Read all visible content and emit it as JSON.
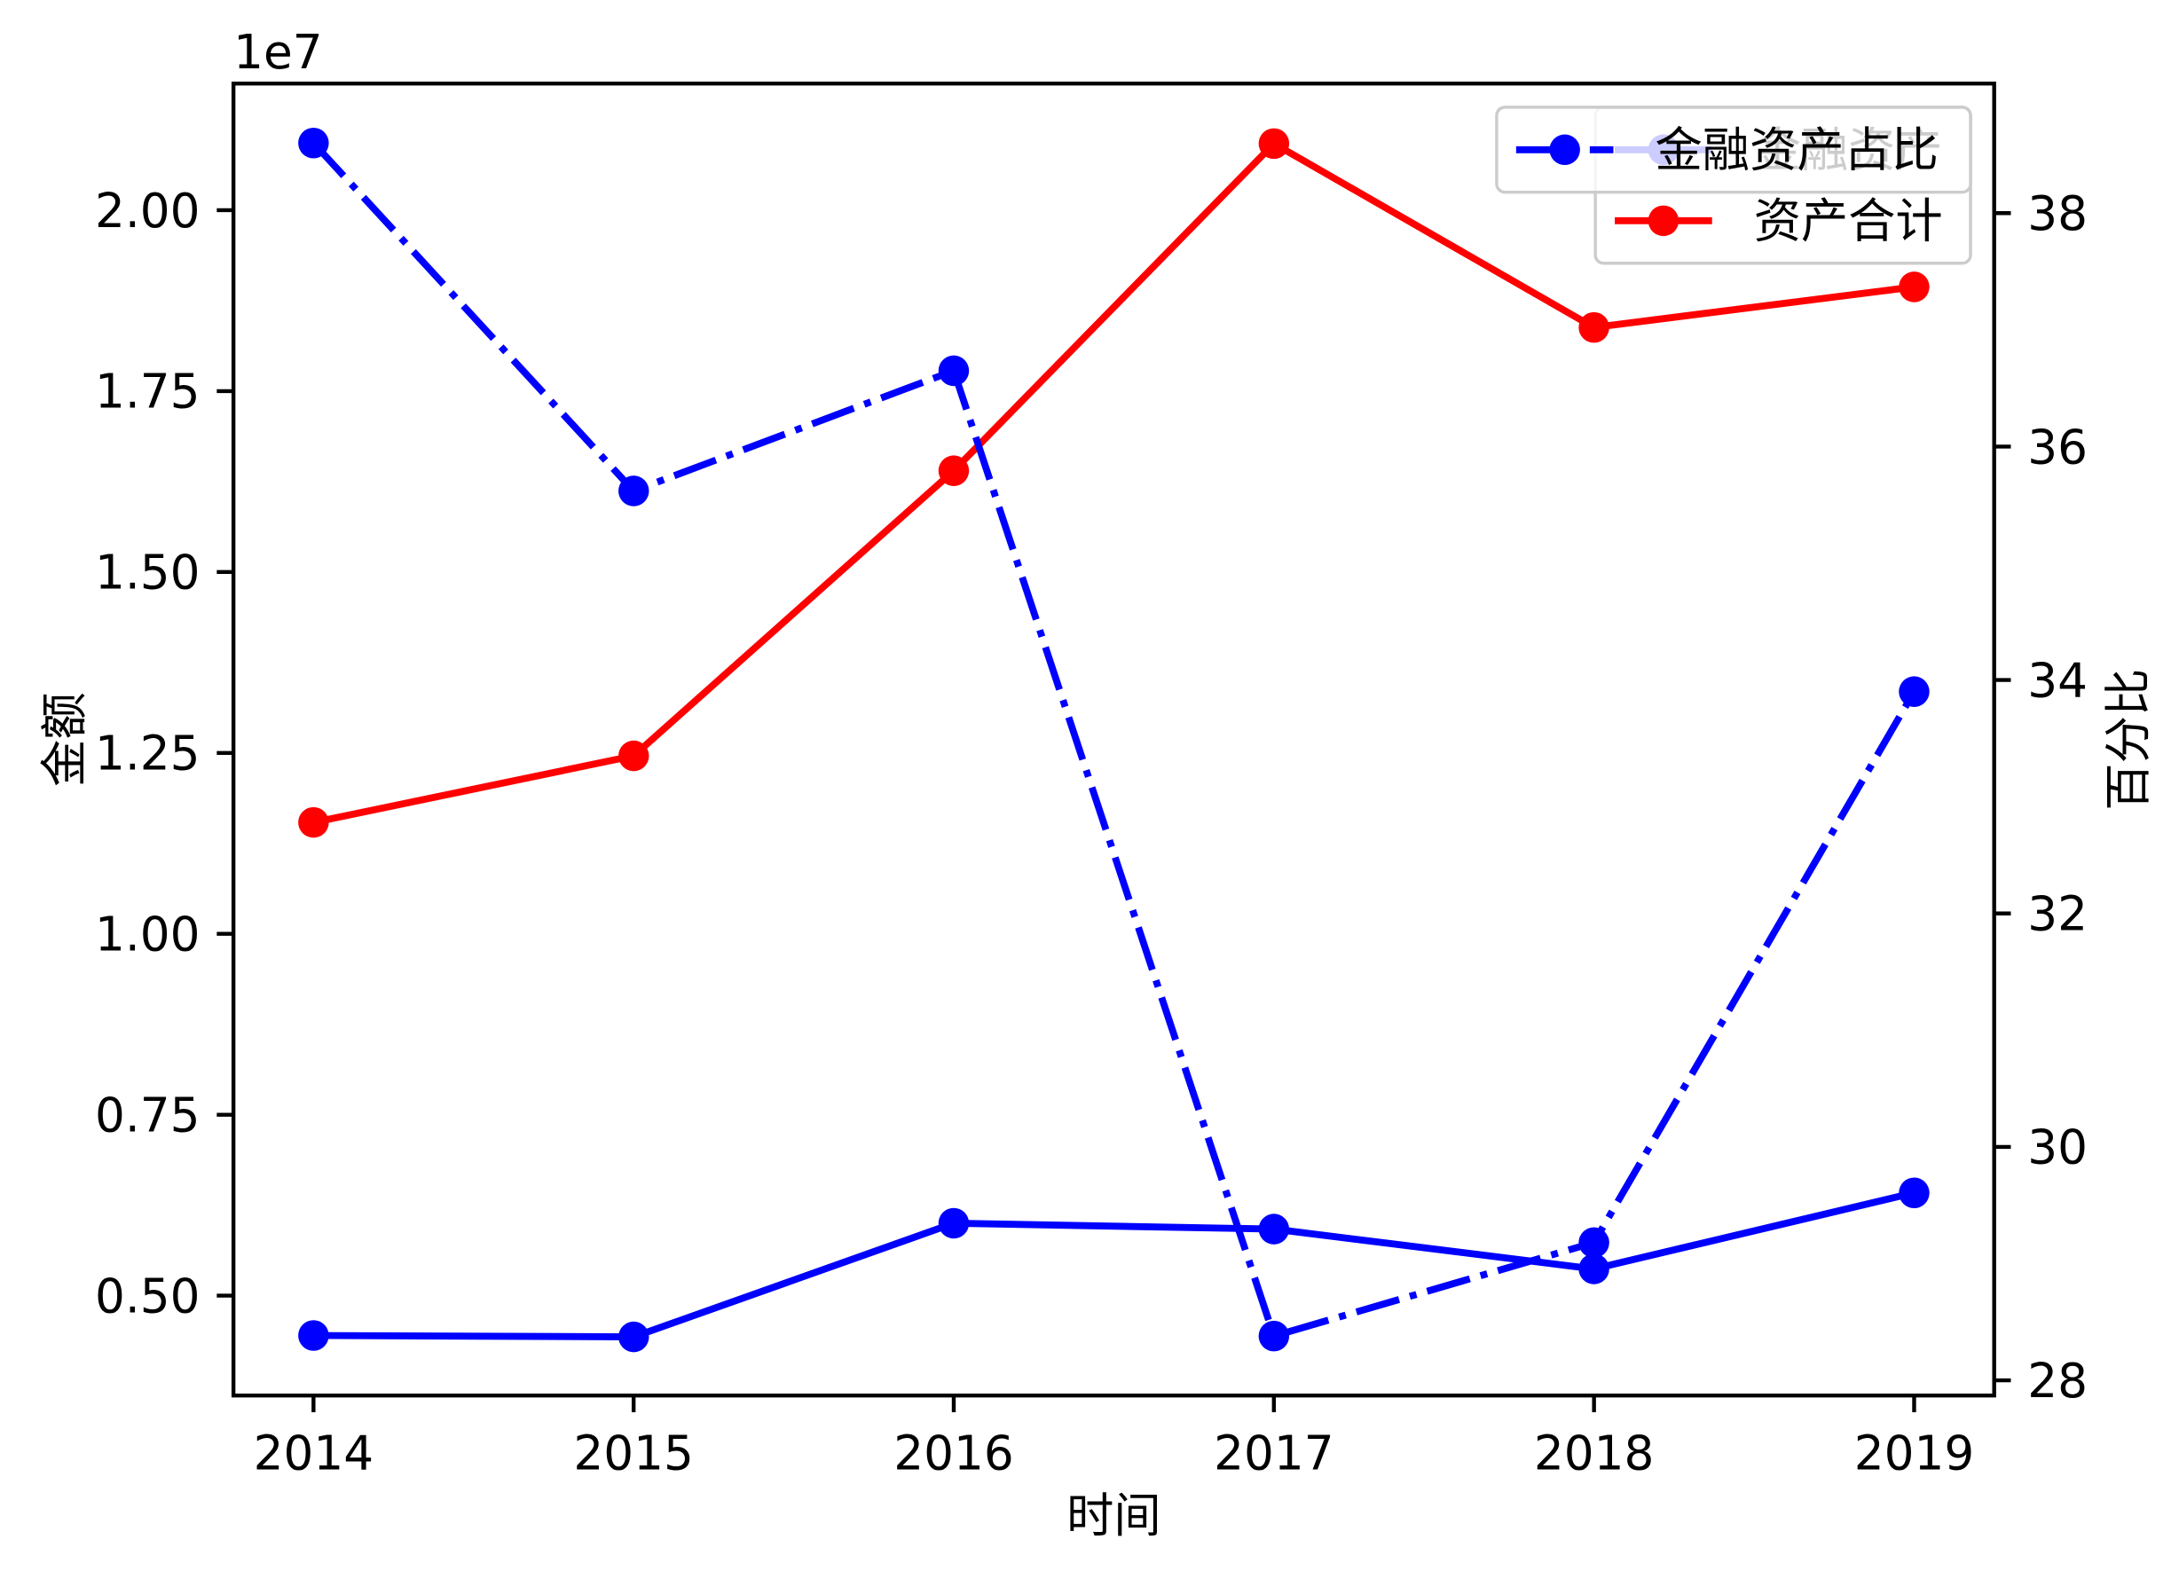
{
  "chart_data": {
    "type": "line",
    "xlabel": "时间",
    "ylabel": "金额",
    "y2label": "百分比",
    "y_offset_text": "1e7",
    "x": [
      2014,
      2015,
      2016,
      2017,
      2018,
      2019
    ],
    "xtick_labels": [
      "2014",
      "2015",
      "2016",
      "2017",
      "2018",
      "2019"
    ],
    "xlim": [
      2013.75,
      2019.25
    ],
    "yticks": [
      5000000,
      7500000,
      10000000,
      12500000,
      15000000,
      17500000,
      20000000
    ],
    "ytick_labels": [
      "0.50",
      "0.75",
      "1.00",
      "1.25",
      "1.50",
      "1.75",
      "2.00"
    ],
    "ylim": [
      3620000,
      21750000
    ],
    "y2ticks": [
      28,
      30,
      32,
      34,
      36,
      38
    ],
    "y2tick_labels": [
      "28",
      "30",
      "32",
      "34",
      "36",
      "38"
    ],
    "y2lim": [
      27.87,
      39.11
    ],
    "grid": false,
    "series": [
      {
        "name": "金融资产",
        "axis": "left",
        "color": "#0000ff",
        "linestyle": "solid",
        "marker": "circle",
        "values": [
          4450000,
          4430000,
          6000000,
          5920000,
          5370000,
          6420000
        ]
      },
      {
        "name": "资产合计",
        "axis": "left",
        "color": "#ff0000",
        "linestyle": "solid",
        "marker": "circle",
        "values": [
          11540000,
          12460000,
          16400000,
          20920000,
          18380000,
          18940000
        ]
      },
      {
        "name": "金融资产占比",
        "axis": "right",
        "color": "#0000ff",
        "linestyle": "dashdot",
        "marker": "circle",
        "values": [
          38.6,
          35.62,
          36.65,
          28.38,
          29.18,
          33.9
        ]
      }
    ],
    "legends": [
      {
        "placement": "top-right",
        "series_index": [
          0,
          1
        ]
      },
      {
        "placement": "top-right",
        "series_index": [
          2
        ]
      }
    ]
  }
}
